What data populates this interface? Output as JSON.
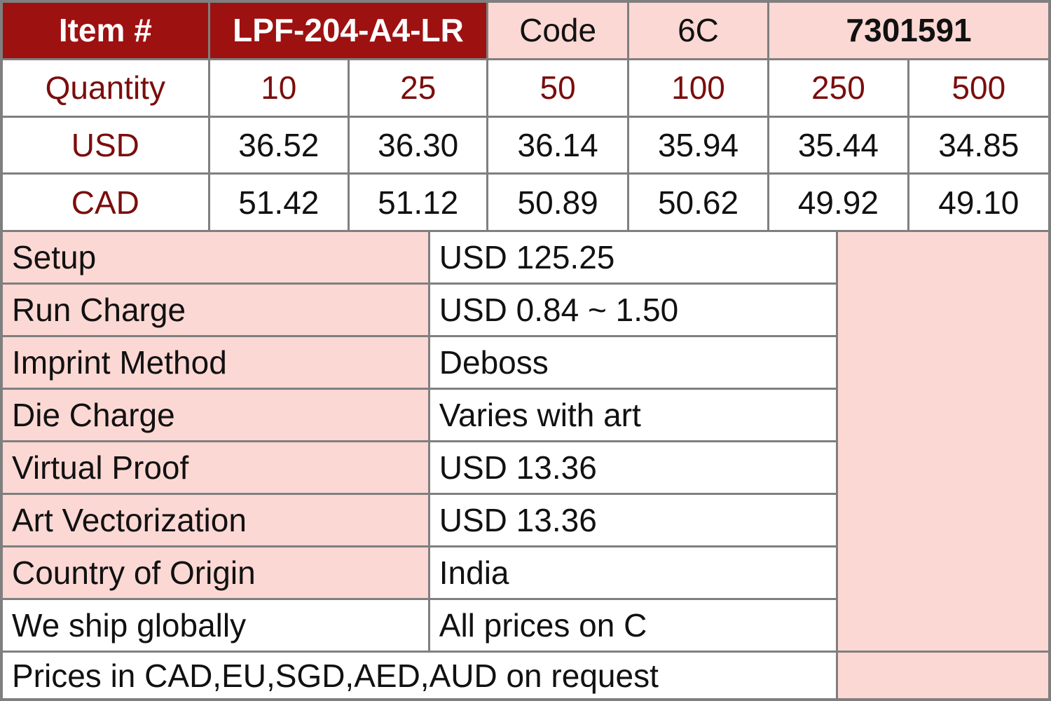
{
  "header": {
    "item_label": "Item #",
    "item_number": "LPF-204-A4-LR",
    "code_label": "Code",
    "code_value": "6C",
    "product_code": "7301591"
  },
  "pricing": {
    "quantity_label": "Quantity",
    "quantities": [
      "10",
      "25",
      "50",
      "100",
      "250",
      "500"
    ],
    "currencies": [
      {
        "label": "USD",
        "prices": [
          "36.52",
          "36.30",
          "36.14",
          "35.94",
          "35.44",
          "34.85"
        ]
      },
      {
        "label": "CAD",
        "prices": [
          "51.42",
          "51.12",
          "50.89",
          "50.62",
          "49.92",
          "49.10"
        ]
      }
    ]
  },
  "details": [
    {
      "label": "Setup",
      "value": "USD 125.25"
    },
    {
      "label": "Run Charge",
      "value": "USD 0.84 ~ 1.50"
    },
    {
      "label": "Imprint Method",
      "value": "Deboss"
    },
    {
      "label": "Die Charge",
      "value": "Varies with art"
    },
    {
      "label": "Virtual Proof",
      "value": "USD 13.36"
    },
    {
      "label": "Art Vectorization",
      "value": "USD 13.36"
    },
    {
      "label": "Country of Origin",
      "value": "India"
    },
    {
      "label": "We ship globally",
      "value": "All prices on C"
    }
  ],
  "footer": {
    "note": "Prices in CAD,EU,SGD,AED,AUD on request"
  },
  "colors": {
    "header_bg": "#9e1111",
    "header_text": "#ffffff",
    "accent_text": "#7b0d0d",
    "pink_bg": "#fcd8d4",
    "grid_border": "#7f7f7f",
    "body_text": "#111111"
  }
}
